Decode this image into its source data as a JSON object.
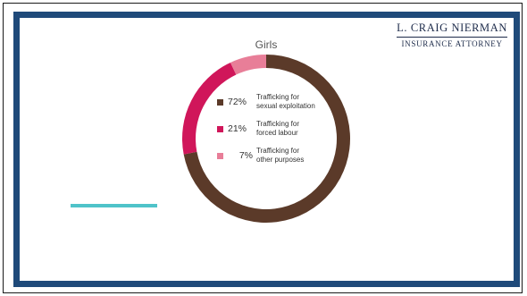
{
  "brand": {
    "name": "L. CRAIG NIERMAN",
    "tagline": "INSURANCE ATTORNEY"
  },
  "colors": {
    "frame": "#1f4a7a",
    "accent_line": "#4fc3c9"
  },
  "chart_data": {
    "type": "pie",
    "variant": "donut",
    "title": "Girls",
    "series": [
      {
        "name": "Trafficking for\nsexual exploitation",
        "value": 72,
        "display": "72%",
        "color": "#5b3a29"
      },
      {
        "name": "Trafficking for\nforced labour",
        "value": 21,
        "display": "21%",
        "color": "#d0165a"
      },
      {
        "name": "Trafficking for\nother purposes",
        "value": 7,
        "display": "7%",
        "color": "#e87e98"
      }
    ],
    "legend_position": "center"
  }
}
